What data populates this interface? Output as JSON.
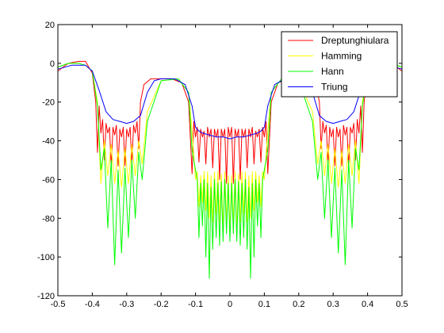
{
  "chart_data": {
    "type": "line",
    "title": "",
    "xlabel": "",
    "ylabel": "",
    "xlim": [
      -0.5,
      0.5
    ],
    "ylim": [
      -120,
      20
    ],
    "xticks": [
      -0.5,
      -0.4,
      -0.3,
      -0.2,
      -0.1,
      0,
      0.1,
      0.2,
      0.3,
      0.4,
      0.5
    ],
    "yticks": [
      20,
      0,
      -20,
      -40,
      -60,
      -80,
      -100,
      -120
    ],
    "xtick_labels": [
      "-0.5",
      "-0.4",
      "-0.3",
      "-0.2",
      "-0.1",
      "0",
      "0.1",
      "0.2",
      "0.3",
      "0.4",
      "0.5"
    ],
    "ytick_labels": [
      "20",
      "0",
      "-20",
      "-40",
      "-60",
      "-80",
      "-100",
      "-120"
    ],
    "grid": false,
    "legend_position": "top-right",
    "series": [
      {
        "name": "Dreptunghiulara",
        "color": "#ff0000",
        "x": [
          -0.5,
          -0.47,
          -0.44,
          -0.42,
          -0.4,
          -0.39,
          -0.385,
          -0.38,
          -0.375,
          -0.37,
          -0.365,
          -0.36,
          -0.355,
          -0.35,
          -0.345,
          -0.34,
          -0.335,
          -0.33,
          -0.325,
          -0.32,
          -0.315,
          -0.31,
          -0.305,
          -0.3,
          -0.295,
          -0.29,
          -0.285,
          -0.28,
          -0.275,
          -0.27,
          -0.265,
          -0.26,
          -0.25,
          -0.23,
          -0.2,
          -0.17,
          -0.14,
          -0.12,
          -0.11,
          -0.105,
          -0.1,
          -0.095,
          -0.09,
          -0.085,
          -0.08,
          -0.075,
          -0.07,
          -0.065,
          -0.06,
          -0.055,
          -0.05,
          -0.045,
          -0.04,
          -0.035,
          -0.03,
          -0.025,
          -0.02,
          -0.015,
          -0.01,
          -0.005,
          0,
          0.005,
          0.01,
          0.015,
          0.02,
          0.025,
          0.03,
          0.035,
          0.04,
          0.045,
          0.05,
          0.055,
          0.06,
          0.065,
          0.07,
          0.075,
          0.08,
          0.085,
          0.09,
          0.095,
          0.1,
          0.105,
          0.11,
          0.12,
          0.14,
          0.17,
          0.2,
          0.23,
          0.25,
          0.26,
          0.265,
          0.27,
          0.275,
          0.28,
          0.285,
          0.29,
          0.295,
          0.3,
          0.305,
          0.31,
          0.315,
          0.32,
          0.325,
          0.33,
          0.335,
          0.34,
          0.345,
          0.35,
          0.355,
          0.36,
          0.365,
          0.37,
          0.375,
          0.38,
          0.385,
          0.39,
          0.4,
          0.42,
          0.44,
          0.47,
          0.5
        ],
        "y": [
          -4,
          0,
          1,
          1,
          -5,
          -20,
          -46,
          -22,
          -36,
          -29,
          -50,
          -31,
          -36,
          -33,
          -54,
          -33,
          -37,
          -32,
          -53,
          -34,
          -38,
          -33,
          -53,
          -34,
          -38,
          -33,
          -52,
          -32,
          -36,
          -30,
          -44,
          -20,
          -11,
          -8,
          -8,
          -8,
          -10,
          -20,
          -57,
          -30,
          -38,
          -33,
          -51,
          -34,
          -38,
          -35,
          -52,
          -33,
          -38,
          -34,
          -54,
          -34,
          -38,
          -34,
          -60,
          -34,
          -38,
          -34,
          -62,
          -33,
          -38,
          -33,
          -62,
          -34,
          -38,
          -34,
          -60,
          -34,
          -38,
          -34,
          -54,
          -34,
          -38,
          -33,
          -52,
          -35,
          -38,
          -34,
          -51,
          -33,
          -38,
          -30,
          -57,
          -20,
          -10,
          -8,
          -8,
          -8,
          -11,
          -20,
          -44,
          -30,
          -36,
          -32,
          -52,
          -33,
          -38,
          -34,
          -53,
          -33,
          -38,
          -34,
          -53,
          -32,
          -37,
          -33,
          -54,
          -33,
          -36,
          -31,
          -50,
          -29,
          -36,
          -22,
          -46,
          -20,
          -5,
          1,
          1,
          0,
          -4
        ]
      },
      {
        "name": "Hamming",
        "color": "#ffff00",
        "x": [
          -0.5,
          -0.47,
          -0.44,
          -0.42,
          -0.4,
          -0.385,
          -0.375,
          -0.365,
          -0.355,
          -0.345,
          -0.335,
          -0.325,
          -0.315,
          -0.305,
          -0.295,
          -0.285,
          -0.275,
          -0.265,
          -0.255,
          -0.24,
          -0.2,
          -0.15,
          -0.12,
          -0.11,
          -0.1,
          -0.095,
          -0.09,
          -0.085,
          -0.08,
          -0.075,
          -0.07,
          -0.065,
          -0.06,
          -0.055,
          -0.05,
          -0.045,
          -0.04,
          -0.035,
          -0.03,
          -0.025,
          -0.02,
          -0.015,
          -0.01,
          -0.005,
          0,
          0.005,
          0.01,
          0.015,
          0.02,
          0.025,
          0.03,
          0.035,
          0.04,
          0.045,
          0.05,
          0.055,
          0.06,
          0.065,
          0.07,
          0.075,
          0.08,
          0.085,
          0.09,
          0.095,
          0.1,
          0.11,
          0.12,
          0.15,
          0.2,
          0.24,
          0.255,
          0.265,
          0.275,
          0.285,
          0.295,
          0.305,
          0.315,
          0.325,
          0.335,
          0.345,
          0.355,
          0.365,
          0.375,
          0.385,
          0.4,
          0.42,
          0.44,
          0.47,
          0.5
        ],
        "y": [
          -2,
          0,
          0,
          -1,
          -4,
          -20,
          -62,
          -40,
          -58,
          -42,
          -62,
          -45,
          -64,
          -44,
          -62,
          -42,
          -58,
          -40,
          -52,
          -25,
          -9,
          -8,
          -15,
          -35,
          -60,
          -56,
          -74,
          -58,
          -72,
          -56,
          -76,
          -56,
          -80,
          -58,
          -82,
          -56,
          -78,
          -56,
          -82,
          -57,
          -86,
          -56,
          -82,
          -58,
          -86,
          -58,
          -82,
          -56,
          -86,
          -57,
          -82,
          -56,
          -78,
          -56,
          -82,
          -58,
          -80,
          -56,
          -76,
          -56,
          -72,
          -58,
          -74,
          -56,
          -60,
          -35,
          -15,
          -8,
          -9,
          -25,
          -52,
          -40,
          -58,
          -42,
          -62,
          -44,
          -64,
          -45,
          -62,
          -42,
          -58,
          -40,
          -62,
          -20,
          -4,
          -1,
          0,
          0,
          -2
        ]
      },
      {
        "name": "Hann",
        "color": "#00ff00",
        "x": [
          -0.5,
          -0.47,
          -0.44,
          -0.42,
          -0.4,
          -0.385,
          -0.375,
          -0.365,
          -0.355,
          -0.345,
          -0.335,
          -0.325,
          -0.315,
          -0.305,
          -0.295,
          -0.285,
          -0.275,
          -0.265,
          -0.255,
          -0.24,
          -0.2,
          -0.15,
          -0.12,
          -0.11,
          -0.1,
          -0.095,
          -0.09,
          -0.085,
          -0.08,
          -0.075,
          -0.07,
          -0.065,
          -0.06,
          -0.055,
          -0.05,
          -0.045,
          -0.04,
          -0.035,
          -0.03,
          -0.025,
          -0.02,
          -0.015,
          -0.01,
          -0.005,
          0,
          0.005,
          0.01,
          0.015,
          0.02,
          0.025,
          0.03,
          0.035,
          0.04,
          0.045,
          0.05,
          0.055,
          0.06,
          0.065,
          0.07,
          0.075,
          0.08,
          0.085,
          0.09,
          0.095,
          0.1,
          0.11,
          0.12,
          0.15,
          0.2,
          0.24,
          0.255,
          0.265,
          0.275,
          0.285,
          0.295,
          0.305,
          0.315,
          0.325,
          0.335,
          0.345,
          0.355,
          0.365,
          0.375,
          0.385,
          0.4,
          0.42,
          0.44,
          0.47,
          0.5
        ],
        "y": [
          -2,
          0,
          0,
          -1,
          -4,
          -22,
          -55,
          -44,
          -85,
          -50,
          -104,
          -55,
          -98,
          -54,
          -90,
          -50,
          -80,
          -46,
          -60,
          -30,
          -9,
          -8,
          -15,
          -45,
          -55,
          -60,
          -90,
          -62,
          -84,
          -60,
          -100,
          -62,
          -111,
          -64,
          -96,
          -60,
          -90,
          -62,
          -94,
          -61,
          -92,
          -60,
          -88,
          -62,
          -92,
          -62,
          -88,
          -60,
          -92,
          -61,
          -94,
          -62,
          -90,
          -60,
          -96,
          -64,
          -111,
          -62,
          -100,
          -60,
          -84,
          -62,
          -90,
          -60,
          -55,
          -45,
          -15,
          -8,
          -9,
          -30,
          -60,
          -46,
          -80,
          -50,
          -90,
          -54,
          -98,
          -55,
          -104,
          -50,
          -85,
          -44,
          -55,
          -22,
          -4,
          -1,
          0,
          0,
          -2
        ]
      },
      {
        "name": "Triung",
        "color": "#0000ff",
        "x": [
          -0.5,
          -0.46,
          -0.42,
          -0.4,
          -0.38,
          -0.36,
          -0.34,
          -0.32,
          -0.3,
          -0.28,
          -0.26,
          -0.24,
          -0.22,
          -0.2,
          -0.16,
          -0.13,
          -0.11,
          -0.1,
          -0.09,
          -0.08,
          -0.06,
          -0.04,
          -0.02,
          0,
          0.02,
          0.04,
          0.06,
          0.08,
          0.09,
          0.1,
          0.11,
          0.13,
          0.16,
          0.2,
          0.22,
          0.24,
          0.26,
          0.28,
          0.3,
          0.32,
          0.34,
          0.36,
          0.38,
          0.4,
          0.42,
          0.46,
          0.5
        ],
        "y": [
          -3,
          -1,
          -1,
          -4,
          -14,
          -25,
          -29,
          -30,
          -31,
          -30,
          -27,
          -15,
          -9,
          -8,
          -8,
          -11,
          -22,
          -33,
          -35,
          -36,
          -37,
          -38,
          -38,
          -39,
          -38,
          -38,
          -37,
          -36,
          -35,
          -33,
          -22,
          -11,
          -8,
          -8,
          -9,
          -15,
          -27,
          -30,
          -31,
          -30,
          -29,
          -25,
          -14,
          -4,
          -1,
          -1,
          -3
        ]
      }
    ]
  }
}
